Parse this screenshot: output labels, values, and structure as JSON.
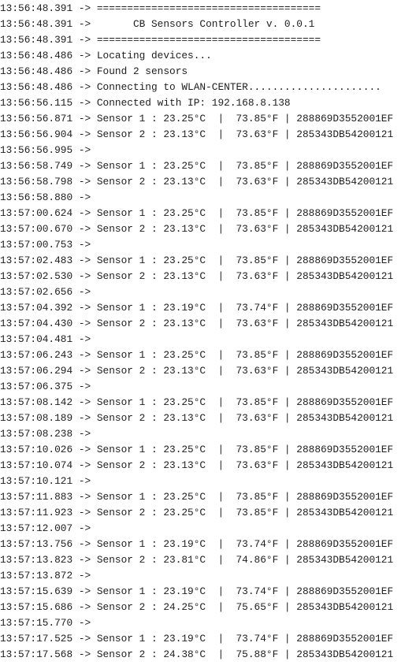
{
  "console": {
    "lines": [
      "13:56:48.391 -> =====================================",
      "13:56:48.391 ->       CB Sensors Controller v. 0.0.1",
      "13:56:48.391 -> =====================================",
      "13:56:48.486 -> Locating devices...",
      "13:56:48.486 -> Found 2 sensors",
      "13:56:48.486 -> Connecting to WLAN-CENTER......................",
      "13:56:56.115 -> Connected with IP: 192.168.8.138",
      "13:56:56.871 -> Sensor 1 : 23.25°C  |  73.85°F | 288869D3552001EF",
      "13:56:56.904 -> Sensor 2 : 23.13°C  |  73.63°F | 285343DB54200121",
      "13:56:56.995 -> ",
      "13:56:58.749 -> Sensor 1 : 23.25°C  |  73.85°F | 288869D3552001EF",
      "13:56:58.798 -> Sensor 2 : 23.13°C  |  73.63°F | 285343DB54200121",
      "13:56:58.880 -> ",
      "13:57:00.624 -> Sensor 1 : 23.25°C  |  73.85°F | 288869D3552001EF",
      "13:57:00.670 -> Sensor 2 : 23.13°C  |  73.63°F | 285343DB54200121",
      "13:57:00.753 -> ",
      "13:57:02.483 -> Sensor 1 : 23.25°C  |  73.85°F | 288869D3552001EF",
      "13:57:02.530 -> Sensor 2 : 23.13°C  |  73.63°F | 285343DB54200121",
      "13:57:02.656 -> ",
      "13:57:04.392 -> Sensor 1 : 23.19°C  |  73.74°F | 288869D3552001EF",
      "13:57:04.430 -> Sensor 2 : 23.13°C  |  73.63°F | 285343DB54200121",
      "13:57:04.481 -> ",
      "13:57:06.243 -> Sensor 1 : 23.25°C  |  73.85°F | 288869D3552001EF",
      "13:57:06.294 -> Sensor 2 : 23.13°C  |  73.63°F | 285343DB54200121",
      "13:57:06.375 -> ",
      "13:57:08.142 -> Sensor 1 : 23.25°C  |  73.85°F | 288869D3552001EF",
      "13:57:08.189 -> Sensor 2 : 23.13°C  |  73.63°F | 285343DB54200121",
      "13:57:08.238 -> ",
      "13:57:10.026 -> Sensor 1 : 23.25°C  |  73.85°F | 288869D3552001EF",
      "13:57:10.074 -> Sensor 2 : 23.13°C  |  73.63°F | 285343DB54200121",
      "13:57:10.121 -> ",
      "13:57:11.883 -> Sensor 1 : 23.25°C  |  73.85°F | 288869D3552001EF",
      "13:57:11.923 -> Sensor 2 : 23.25°C  |  73.85°F | 285343DB54200121",
      "13:57:12.007 -> ",
      "13:57:13.756 -> Sensor 1 : 23.19°C  |  73.74°F | 288869D3552001EF",
      "13:57:13.823 -> Sensor 2 : 23.81°C  |  74.86°F | 285343DB54200121",
      "13:57:13.872 -> ",
      "13:57:15.639 -> Sensor 1 : 23.19°C  |  73.74°F | 288869D3552001EF",
      "13:57:15.686 -> Sensor 2 : 24.25°C  |  75.65°F | 285343DB54200121",
      "13:57:15.770 -> ",
      "13:57:17.525 -> Sensor 1 : 23.19°C  |  73.74°F | 288869D3552001EF",
      "13:57:17.568 -> Sensor 2 : 24.38°C  |  75.88°F | 285343DB54200121"
    ]
  }
}
